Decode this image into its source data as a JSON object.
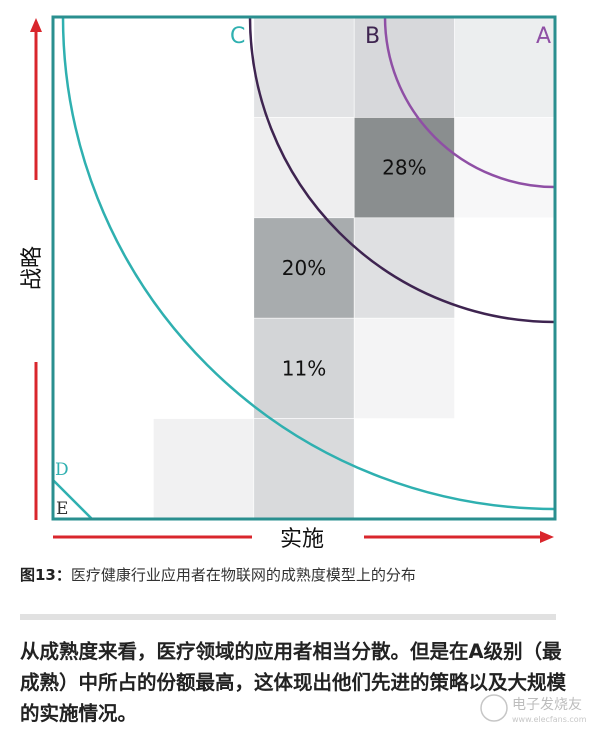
{
  "diagram": {
    "zones": [
      {
        "label": "A",
        "color": "#8f4fa5"
      },
      {
        "label": "B",
        "color": "#3e2450"
      },
      {
        "label": "C",
        "color": "#2fb0b0"
      },
      {
        "label": "D",
        "color": "#2fb0b0"
      },
      {
        "label": "E",
        "color": "#333333"
      }
    ],
    "cells": [
      {
        "row": 0,
        "col": 2,
        "shade": "#e2e3e5"
      },
      {
        "row": 0,
        "col": 3,
        "shade": "#d7d8db"
      },
      {
        "row": 0,
        "col": 4,
        "shade": "#eceeef"
      },
      {
        "row": 1,
        "col": 2,
        "shade": "#eeeeef"
      },
      {
        "row": 1,
        "col": 3,
        "shade": "#8a8e8f",
        "value": "28%"
      },
      {
        "row": 1,
        "col": 4,
        "shade": "#f7f7f8"
      },
      {
        "row": 2,
        "col": 2,
        "shade": "#a8acae",
        "value": "20%"
      },
      {
        "row": 2,
        "col": 3,
        "shade": "#dfe0e2"
      },
      {
        "row": 3,
        "col": 2,
        "shade": "#d3d5d7",
        "value": "11%"
      },
      {
        "row": 3,
        "col": 3,
        "shade": "#f4f4f5"
      },
      {
        "row": 4,
        "col": 1,
        "shade": "#f1f1f2"
      },
      {
        "row": 4,
        "col": 2,
        "shade": "#d9dadc"
      }
    ],
    "axes": {
      "y_label": "战略",
      "x_label": "实施",
      "arrow_color": "#d9262c"
    }
  },
  "caption": {
    "label": "图13：",
    "text": "医疗健康行业应用者在物联网的成熟度模型上的分布"
  },
  "summary": "从成熟度来看，医疗领域的应用者相当分散。但是在A级别（最成熟）中所占的份额最高，这体现出他们先进的策略以及大规模的实施情况。",
  "watermark": {
    "text": "电子发烧友",
    "domain": "www.elecfans.com"
  }
}
